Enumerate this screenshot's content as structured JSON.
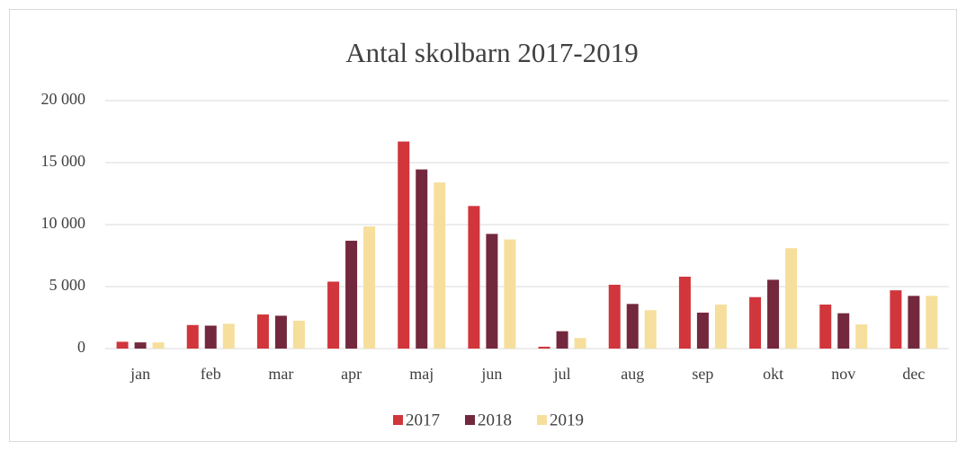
{
  "chart_data": {
    "type": "bar",
    "title": "Antal skolbarn 2017-2019",
    "categories": [
      "jan",
      "feb",
      "mar",
      "apr",
      "maj",
      "jun",
      "jul",
      "aug",
      "sep",
      "okt",
      "nov",
      "dec"
    ],
    "series": [
      {
        "name": "2017",
        "color": "#d0363b",
        "values": [
          550,
          1900,
          2750,
          5400,
          16700,
          11500,
          150,
          5150,
          5800,
          4150,
          3550,
          4700
        ]
      },
      {
        "name": "2018",
        "color": "#73283e",
        "values": [
          500,
          1850,
          2650,
          8700,
          14450,
          9250,
          1400,
          3600,
          2900,
          5550,
          2850,
          4250
        ]
      },
      {
        "name": "2019",
        "color": "#f6df9c",
        "values": [
          500,
          2000,
          2250,
          9850,
          13400,
          8800,
          850,
          3100,
          3550,
          8100,
          1950,
          4250
        ]
      }
    ],
    "ylim": [
      0,
      20000
    ],
    "yticks": [
      0,
      {
        "value": 5000,
        "label": "5 000"
      },
      {
        "value": 10000,
        "label": "10 000"
      },
      {
        "value": 15000,
        "label": "15 000"
      },
      {
        "value": 20000,
        "label": "20 000"
      }
    ],
    "grid": true,
    "legend": "bottom"
  }
}
